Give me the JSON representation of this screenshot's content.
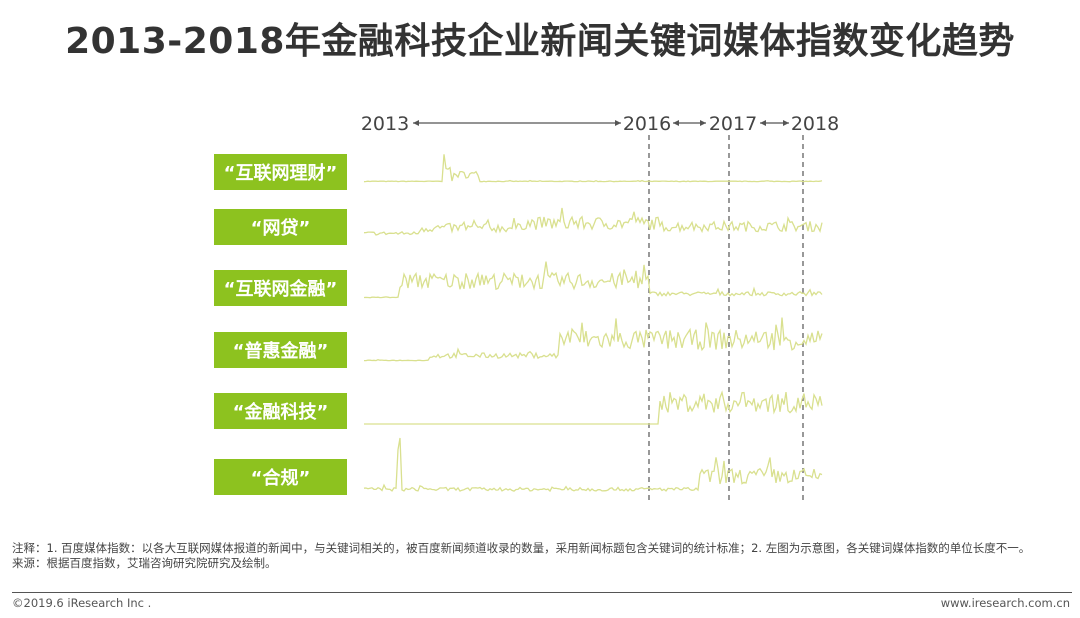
{
  "title": "2013-2018年金融科技企业新闻关键词媒体指数变化趋势",
  "colors": {
    "accent": "#8dc21f",
    "line": "#d9e08f",
    "baseline": "#cccccc",
    "text": "#333333"
  },
  "chart_data": {
    "type": "line",
    "title": "2013-2018年金融科技企业新闻关键词媒体指数变化趋势",
    "x_markers": [
      "2013",
      "2016",
      "2017",
      "2018"
    ],
    "series": [
      {
        "name": "“互联网理财”"
      },
      {
        "name": "“网贷”"
      },
      {
        "name": "“互联网金融”"
      },
      {
        "name": "“普惠金融”"
      },
      {
        "name": "“金融科技”"
      },
      {
        "name": "“合规”"
      }
    ]
  },
  "notes": [
    "注释：1. 百度媒体指数：以各大互联网媒体报道的新闻中，与关键词相关的，被百度新闻频道收录的数量，采用新闻标题包含关键词的统计标准；2. 左图为示意图，各关键词媒体指数的单位长度不一。",
    "来源：根据百度指数，艾瑞咨询研究院研究及绘制。"
  ],
  "footer": {
    "copyright": "©2019.6 iResearch Inc .",
    "website": "www.iresearch.com.cn"
  }
}
